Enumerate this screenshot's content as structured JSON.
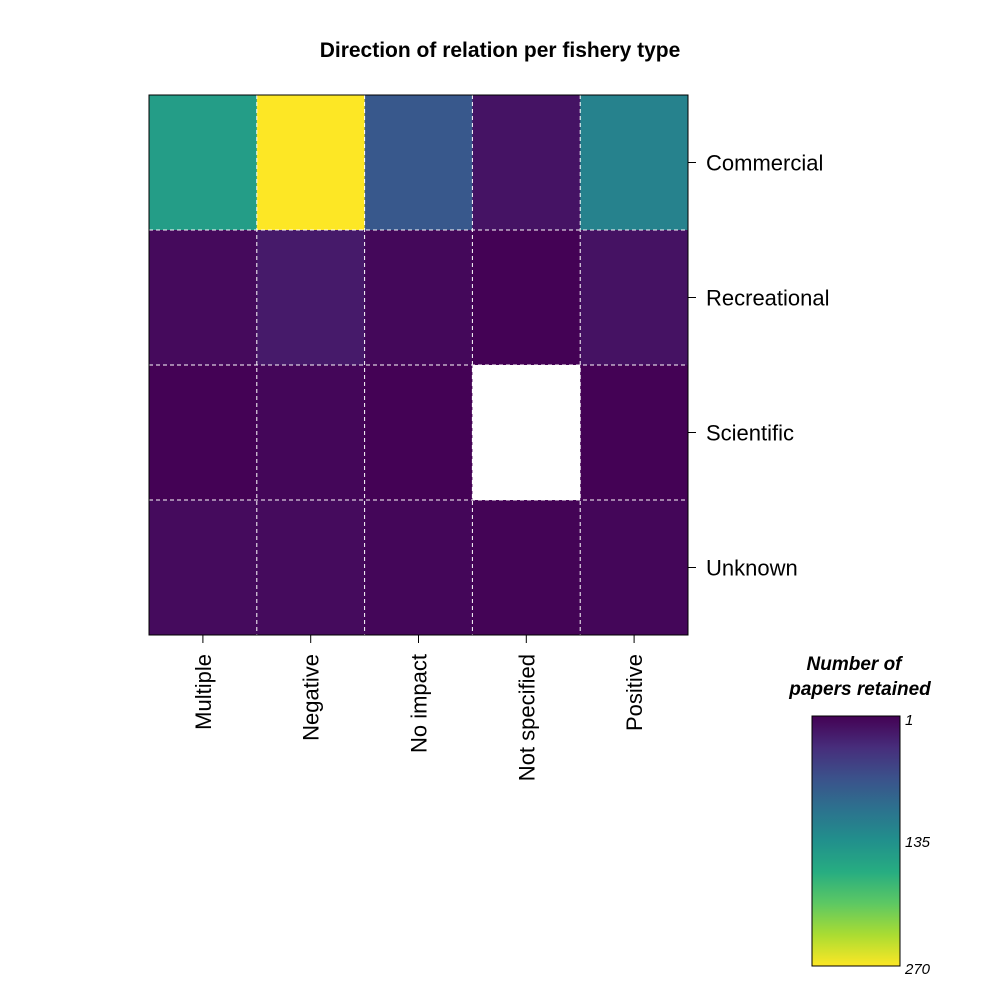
{
  "chart_data": {
    "type": "heatmap",
    "title": "Direction of relation per fishery type",
    "x_categories": [
      "Multiple",
      "Negative",
      "No impact",
      "Not specified",
      "Positive"
    ],
    "y_categories": [
      "Commercial",
      "Recreational",
      "Scientific",
      "Unknown"
    ],
    "values": [
      [
        150,
        270,
        75,
        15,
        120
      ],
      [
        8,
        20,
        6,
        2,
        14
      ],
      [
        2,
        5,
        2,
        null,
        2
      ],
      [
        9,
        9,
        5,
        3,
        5
      ]
    ],
    "colorscale": "viridis (reversed)",
    "color_range": [
      1,
      270
    ],
    "legend": {
      "title_line1": "Number of",
      "title_line2": "papers retained",
      "ticks": [
        "1",
        "135",
        "270"
      ],
      "placement": "bottom-right"
    },
    "grid": "dashed white",
    "missing_color": "#ffffff"
  }
}
